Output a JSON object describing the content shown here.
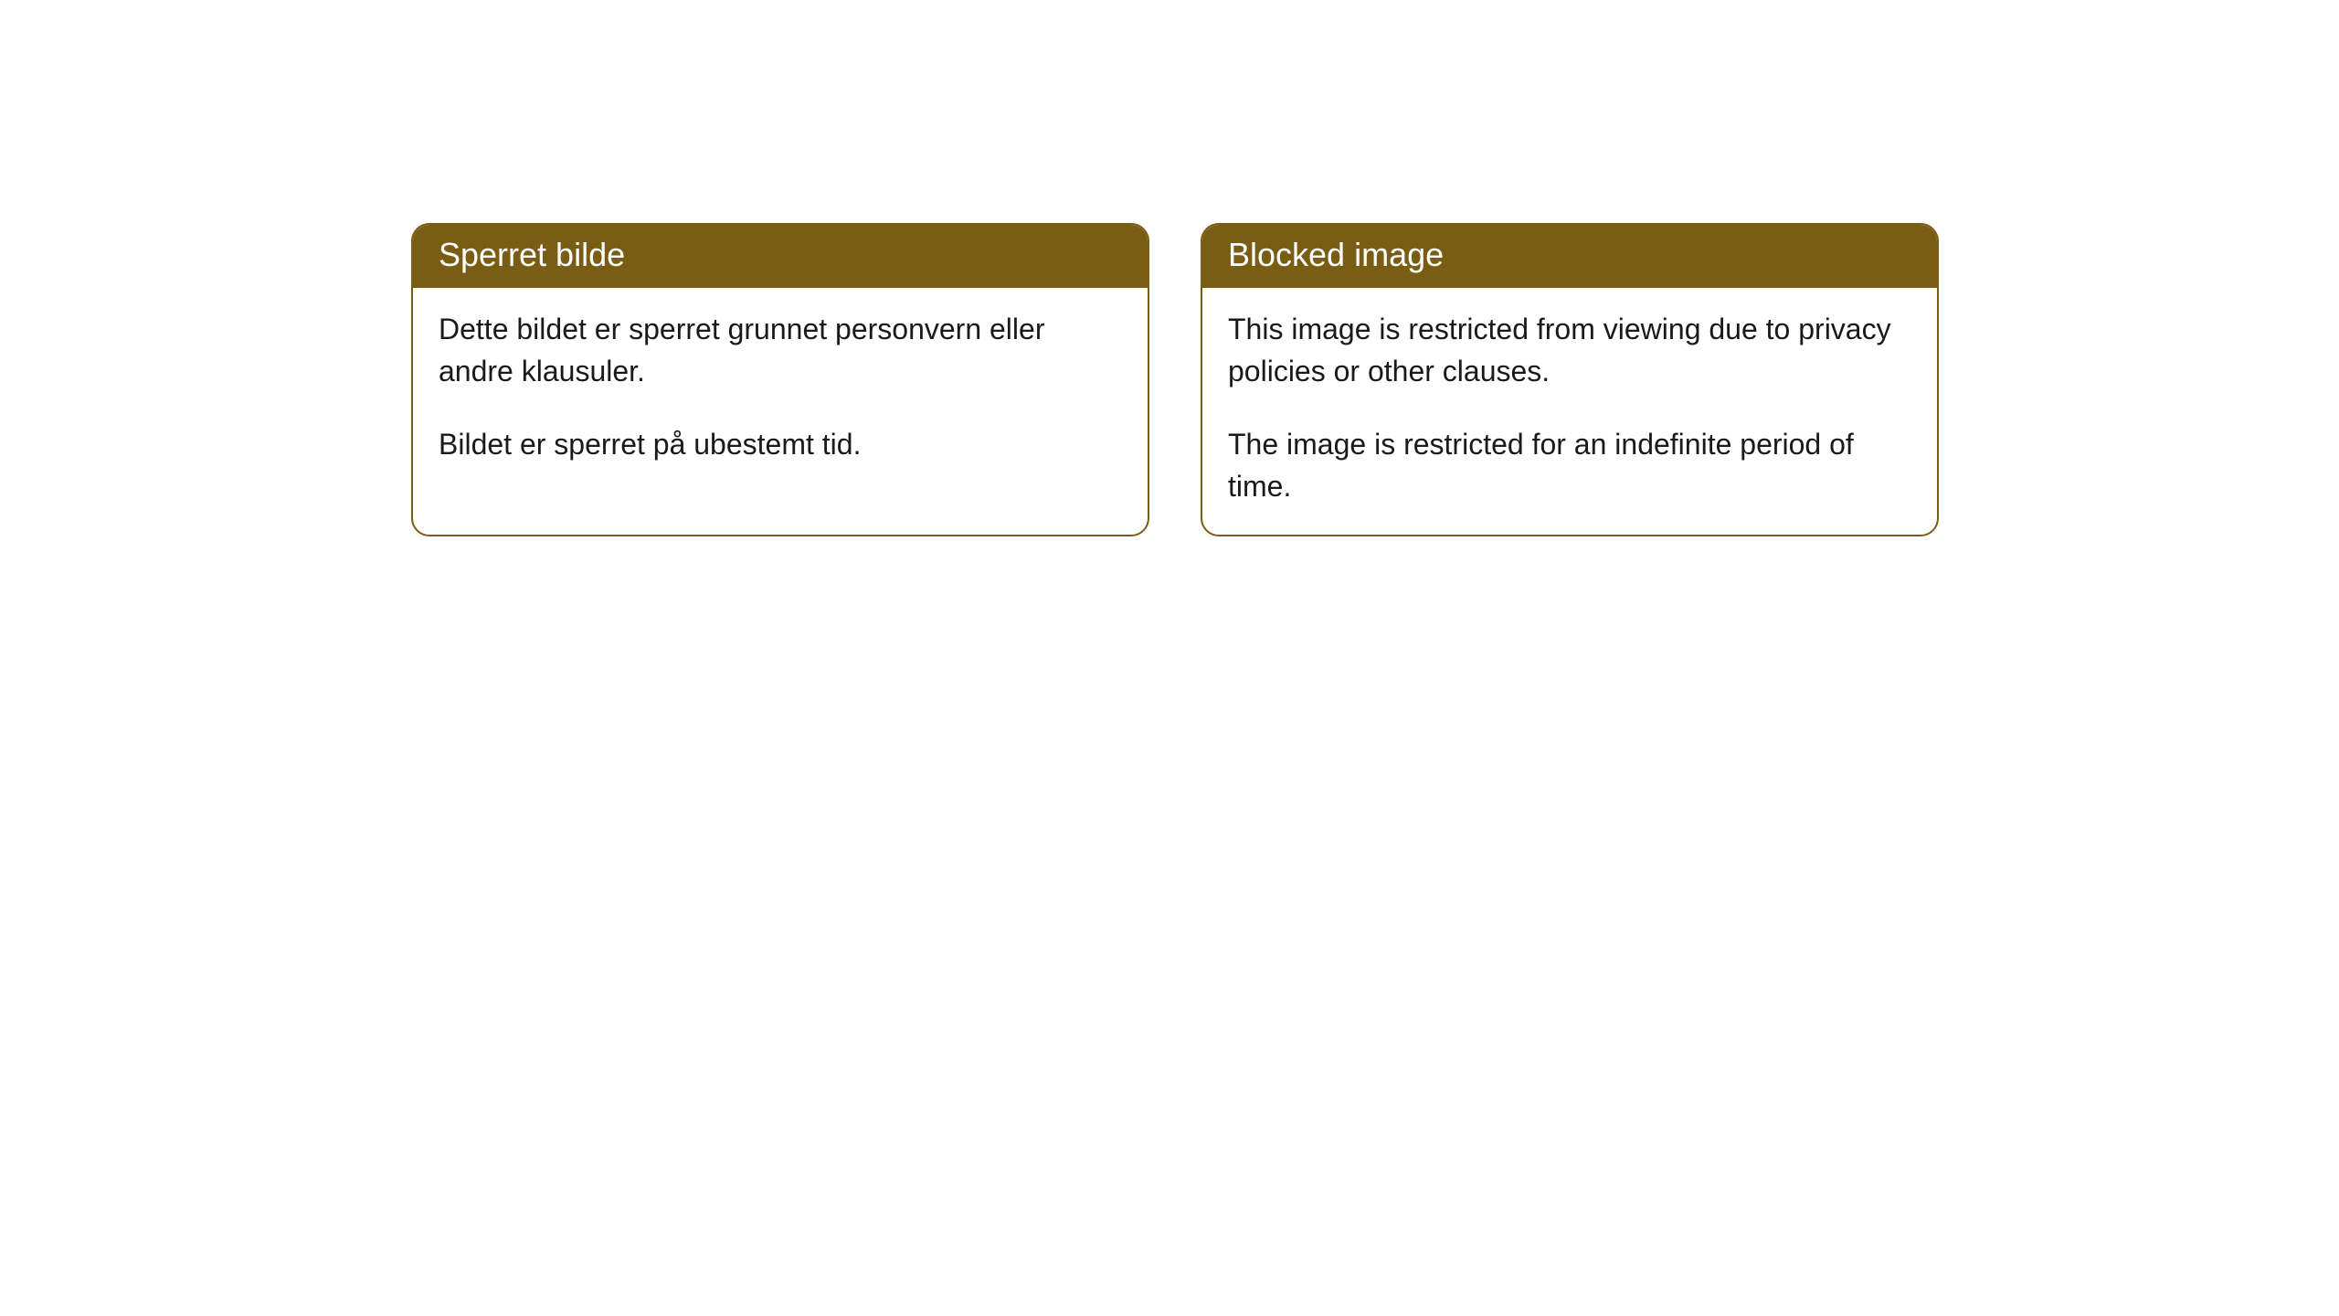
{
  "cards": [
    {
      "title": "Sperret bilde",
      "paragraph1": "Dette bildet er sperret grunnet personvern eller andre klausuler.",
      "paragraph2": "Bildet er sperret på ubestemt tid."
    },
    {
      "title": "Blocked image",
      "paragraph1": "This image is restricted from viewing due to privacy policies or other clauses.",
      "paragraph2": "The image is restricted for an indefinite period of time."
    }
  ],
  "style": {
    "header_bg_color": "#7a5d14",
    "header_text_color": "#ffffff",
    "border_color": "#7a5d14",
    "body_text_color": "#1a1a1a",
    "card_bg_color": "#ffffff",
    "page_bg_color": "#ffffff",
    "border_radius": 20,
    "header_fontsize": 36,
    "body_fontsize": 32
  }
}
